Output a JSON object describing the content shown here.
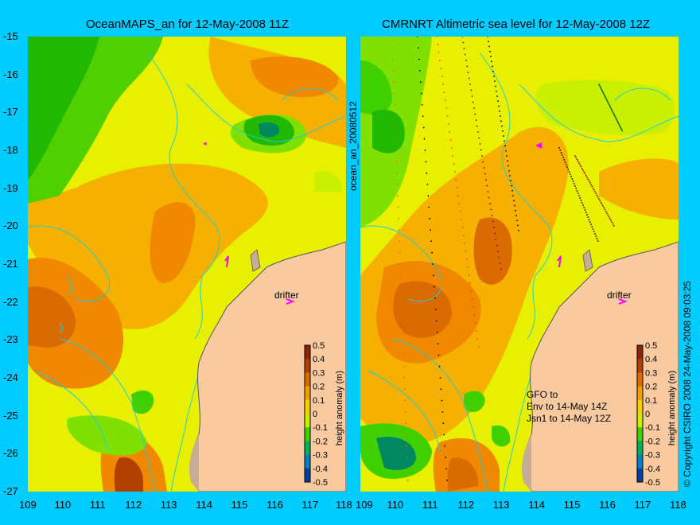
{
  "left_panel": {
    "title": "OceanMAPS_an for 12-May-2008 11Z",
    "drifter_label": "drifter",
    "colorbar_label": "height anomaly (m)"
  },
  "right_panel": {
    "title": "CMRNRT Altimetric sea level  for 12-May-2008 12Z",
    "drifter_label": "drifter",
    "colorbar_label": "height anomaly (m)",
    "notes": [
      "GFO to",
      "Env to 14-May 14Z",
      "Jsn1 to 14-May 12Z"
    ]
  },
  "middle_label": "ocean_an_20080512",
  "copyright": "© Copyright CSIRO 2008   24-May-2008 09:03:25",
  "axes": {
    "x_ticks": [
      "109",
      "110",
      "111",
      "112",
      "113",
      "114",
      "115",
      "116",
      "117",
      "118"
    ],
    "y_ticks": [
      "-15",
      "-16",
      "-17",
      "-18",
      "-19",
      "-20",
      "-21",
      "-22",
      "-23",
      "-24",
      "-25",
      "-26",
      "-27"
    ],
    "xlim": [
      109,
      118
    ],
    "ylim": [
      -27,
      -15
    ]
  },
  "colorbar": {
    "ticks": [
      "0.5",
      "0.4",
      "0.3",
      "0.2",
      "0.1",
      "0",
      "-0.1",
      "-0.2",
      "-0.3",
      "-0.4",
      "-0.5"
    ],
    "colors": [
      "#8b2500",
      "#b04000",
      "#d96b00",
      "#f0a000",
      "#f5d000",
      "#c8f000",
      "#40d000",
      "#00b060",
      "#0080c0",
      "#0040a0",
      "#001070"
    ]
  },
  "colors": {
    "background": "#00ccff",
    "land": "#f9caa0",
    "coastline": "#555555",
    "contour": "#20d0d0",
    "drifter": "#ff00ff"
  }
}
